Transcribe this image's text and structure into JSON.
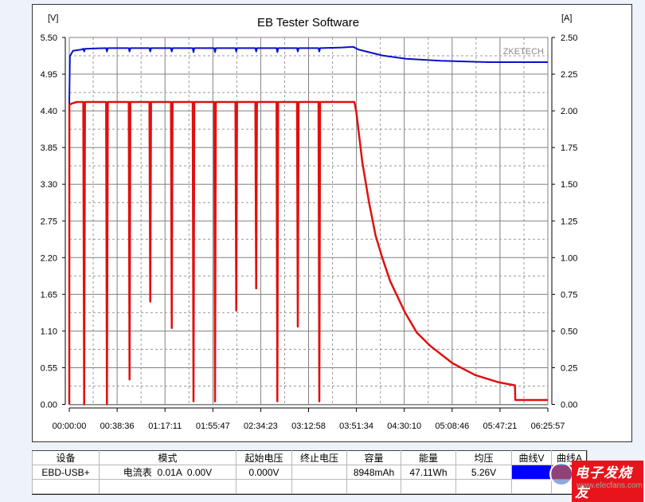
{
  "chart_data": {
    "type": "line",
    "title": "EB Tester Software",
    "ylabel_left": "[V]",
    "ylabel_right": "[A]",
    "watermark": "ZKETECH",
    "grid": true,
    "xlim": [
      "00:00:00",
      "06:25:57"
    ],
    "ylim_left": [
      0,
      5.5
    ],
    "ylim_right": [
      0,
      2.5
    ],
    "x_ticks": [
      "00:00:00",
      "00:38:36",
      "01:17:11",
      "01:55:47",
      "02:34:23",
      "03:12:58",
      "03:51:34",
      "04:30:10",
      "05:08:46",
      "05:47:21",
      "06:25:57"
    ],
    "y_left_ticks": [
      "0.00",
      "0.55",
      "1.10",
      "1.65",
      "2.20",
      "2.75",
      "3.30",
      "3.85",
      "4.40",
      "4.95",
      "5.50"
    ],
    "y_right_ticks": [
      "0.00",
      "0.25",
      "0.50",
      "0.75",
      "1.00",
      "1.25",
      "1.50",
      "1.75",
      "2.00",
      "2.25",
      "2.50"
    ],
    "series": [
      {
        "axis": "left",
        "color": "#0a10c8",
        "points": [
          [
            "00:00:00",
            4.5
          ],
          [
            "00:00:30",
            5.22
          ],
          [
            "00:03:00",
            5.3
          ],
          [
            "00:10:00",
            5.32
          ],
          [
            "00:11:20",
            5.33
          ],
          [
            "00:12:00",
            5.29
          ],
          [
            "00:12:40",
            5.33
          ],
          [
            "00:29:43",
            5.34
          ],
          [
            "00:30:23",
            5.29
          ],
          [
            "00:31:03",
            5.34
          ],
          [
            "00:47:57",
            5.34
          ],
          [
            "00:48:37",
            5.29
          ],
          [
            "00:49:17",
            5.34
          ],
          [
            "01:04:39",
            5.34
          ],
          [
            "01:05:19",
            5.29
          ],
          [
            "01:05:59",
            5.34
          ],
          [
            "01:21:59",
            5.34
          ],
          [
            "01:22:39",
            5.29
          ],
          [
            "01:23:19",
            5.34
          ],
          [
            "01:39:31",
            5.34
          ],
          [
            "01:40:11",
            5.28
          ],
          [
            "01:40:51",
            5.34
          ],
          [
            "01:56:51",
            5.34
          ],
          [
            "01:57:31",
            5.28
          ],
          [
            "01:58:11",
            5.34
          ],
          [
            "02:14:00",
            5.34
          ],
          [
            "02:14:40",
            5.29
          ],
          [
            "02:15:20",
            5.34
          ],
          [
            "02:30:03",
            5.34
          ],
          [
            "02:30:43",
            5.29
          ],
          [
            "02:31:23",
            5.34
          ],
          [
            "02:47:08",
            5.34
          ],
          [
            "02:47:48",
            5.28
          ],
          [
            "02:48:28",
            5.34
          ],
          [
            "03:03:38",
            5.34
          ],
          [
            "03:04:18",
            5.29
          ],
          [
            "03:04:58",
            5.34
          ],
          [
            "03:20:59",
            5.34
          ],
          [
            "03:21:39",
            5.29
          ],
          [
            "03:22:19",
            5.34
          ],
          [
            "03:40:00",
            5.35
          ],
          [
            "03:48:48",
            5.36
          ],
          [
            "03:53:06",
            5.32
          ],
          [
            "04:12:23",
            5.23
          ],
          [
            "04:31:38",
            5.18
          ],
          [
            "04:59:15",
            5.15
          ],
          [
            "05:37:47",
            5.13
          ],
          [
            "06:25:57",
            5.13
          ]
        ]
      },
      {
        "axis": "right",
        "color": "#e01010",
        "points": [
          [
            "00:00:00",
            0.0
          ],
          [
            "00:00:05",
            2.04
          ],
          [
            "00:02:00",
            2.05
          ],
          [
            "00:06:00",
            2.06
          ],
          [
            "00:11:20",
            2.06
          ],
          [
            "00:12:00",
            0.0
          ],
          [
            "00:12:40",
            2.06
          ],
          [
            "00:29:43",
            2.06
          ],
          [
            "00:30:23",
            0.0
          ],
          [
            "00:31:03",
            2.06
          ],
          [
            "00:47:57",
            2.06
          ],
          [
            "00:48:37",
            0.17
          ],
          [
            "00:49:17",
            2.06
          ],
          [
            "01:04:39",
            2.06
          ],
          [
            "01:05:19",
            0.7
          ],
          [
            "01:05:59",
            2.06
          ],
          [
            "01:21:59",
            2.06
          ],
          [
            "01:22:39",
            0.52
          ],
          [
            "01:23:19",
            2.06
          ],
          [
            "01:39:31",
            2.06
          ],
          [
            "01:40:11",
            0.02
          ],
          [
            "01:40:51",
            2.06
          ],
          [
            "01:56:51",
            2.06
          ],
          [
            "01:57:31",
            0.02
          ],
          [
            "01:58:11",
            2.06
          ],
          [
            "02:14:00",
            2.06
          ],
          [
            "02:14:40",
            0.64
          ],
          [
            "02:15:20",
            2.06
          ],
          [
            "02:30:03",
            2.06
          ],
          [
            "02:30:43",
            0.79
          ],
          [
            "02:31:23",
            2.06
          ],
          [
            "02:47:08",
            2.06
          ],
          [
            "02:47:48",
            0.02
          ],
          [
            "02:48:28",
            2.06
          ],
          [
            "03:03:38",
            2.06
          ],
          [
            "03:04:18",
            0.53
          ],
          [
            "03:04:58",
            2.06
          ],
          [
            "03:20:59",
            2.06
          ],
          [
            "03:21:39",
            0.02
          ],
          [
            "03:22:19",
            2.06
          ],
          [
            "03:49:54",
            2.06
          ],
          [
            "03:51:23",
            2.0
          ],
          [
            "03:56:19",
            1.65
          ],
          [
            "04:01:39",
            1.38
          ],
          [
            "04:07:03",
            1.15
          ],
          [
            "04:12:23",
            1.0
          ],
          [
            "04:18:48",
            0.84
          ],
          [
            "04:30:33",
            0.63
          ],
          [
            "04:40:11",
            0.49
          ],
          [
            "04:50:54",
            0.4
          ],
          [
            "05:09:05",
            0.28
          ],
          [
            "05:27:20",
            0.2
          ],
          [
            "05:46:35",
            0.15
          ],
          [
            "05:59:26",
            0.13
          ],
          [
            "05:59:42",
            0.03
          ],
          [
            "06:25:57",
            0.03
          ]
        ]
      }
    ]
  },
  "table": {
    "headers": [
      "设备",
      "模式",
      "起始电压",
      "终止电压",
      "容量",
      "能量",
      "均压",
      "曲线V",
      "曲线A"
    ],
    "row": {
      "device": "EBD-USB+",
      "mode": "电流表  0.01A  0.00V",
      "start_voltage": "0.000V",
      "end_voltage": "",
      "capacity": "8948mAh",
      "energy": "47.11Wh",
      "avg_voltage": "5.26V",
      "curve_v_color": "#0000ff",
      "curve_a_color": "#ff0000"
    }
  },
  "logo": {
    "brand": "电子发烧友",
    "url": "www.elecfans.com"
  }
}
